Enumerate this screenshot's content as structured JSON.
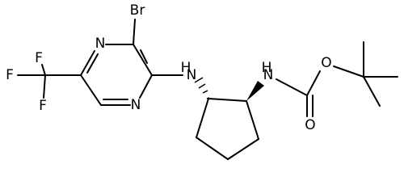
{
  "molecule": {
    "atoms": [
      {
        "label": "F"
      },
      {
        "label": "F"
      },
      {
        "label": "F"
      },
      {
        "label": "N"
      },
      {
        "label": "Br"
      },
      {
        "label": "N"
      },
      {
        "label": "H"
      },
      {
        "label": "N"
      },
      {
        "label": "H"
      },
      {
        "label": "N"
      },
      {
        "label": "O"
      },
      {
        "label": "O"
      }
    ]
  }
}
